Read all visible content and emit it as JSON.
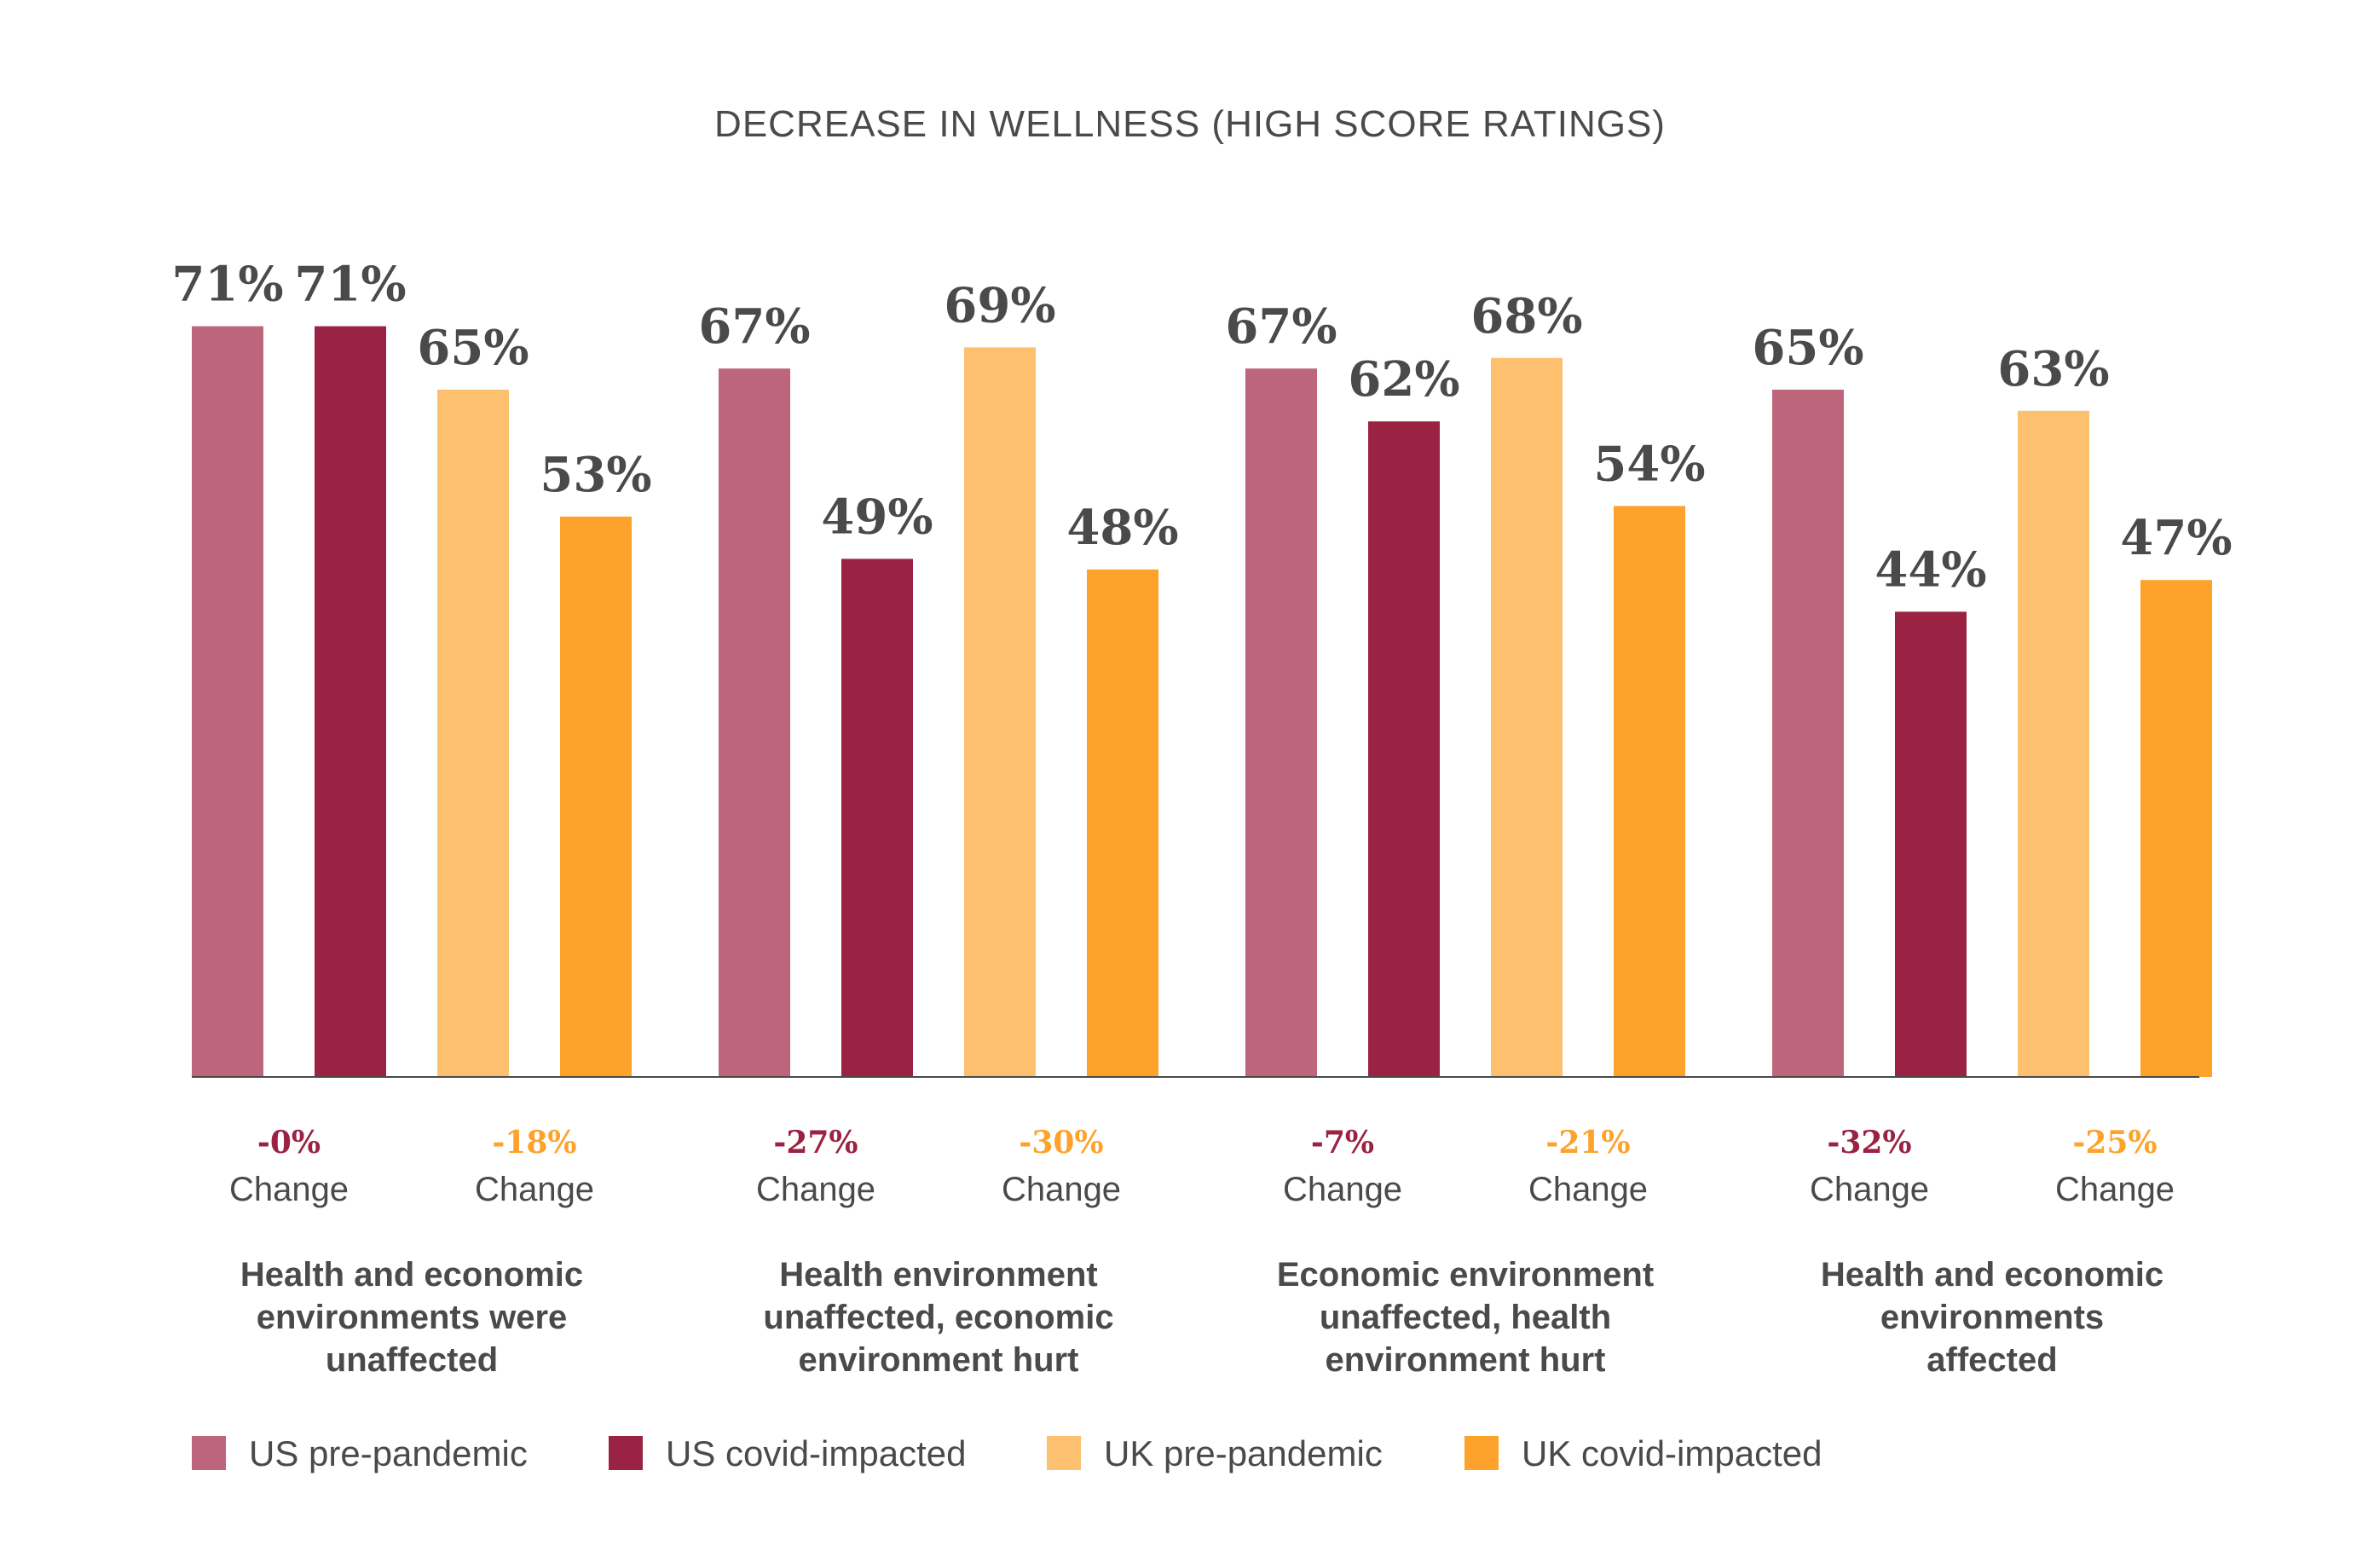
{
  "chart_data": {
    "type": "bar",
    "title": "DECREASE IN WELLNESS (HIGH SCORE RATINGS)",
    "xlabel": "",
    "ylabel": "",
    "ylim": [
      0,
      100
    ],
    "grid": false,
    "legend_position": "bottom",
    "value_suffix": "%",
    "categories": [
      [
        "Health and economic",
        "environments were",
        "unaffected"
      ],
      [
        "Health environment",
        "unaffected, economic",
        "environment hurt"
      ],
      [
        "Economic environment",
        "unaffected, health",
        "environment hurt"
      ],
      [
        "Health and economic",
        "environments",
        "affected"
      ]
    ],
    "series": [
      {
        "name": "US pre-pandemic",
        "color": "#bc657b",
        "values": [
          71,
          67,
          67,
          65
        ]
      },
      {
        "name": "US covid-impacted",
        "color": "#9a2243",
        "values": [
          71,
          49,
          62,
          44
        ]
      },
      {
        "name": "UK pre-pandemic",
        "color": "#fdc06e",
        "values": [
          65,
          69,
          68,
          63
        ]
      },
      {
        "name": "UK covid-impacted",
        "color": "#fda32b",
        "values": [
          53,
          48,
          54,
          47
        ]
      }
    ],
    "change_word": "Change",
    "changes": [
      {
        "us": "-0%",
        "uk": "-18%"
      },
      {
        "us": "-27%",
        "uk": "-30%"
      },
      {
        "us": "-7%",
        "uk": "-21%"
      },
      {
        "us": "-32%",
        "uk": "-25%"
      }
    ],
    "change_colors": {
      "us": "#9a2243",
      "uk": "#fda32b"
    },
    "axis_color": "#4a4a4a"
  }
}
